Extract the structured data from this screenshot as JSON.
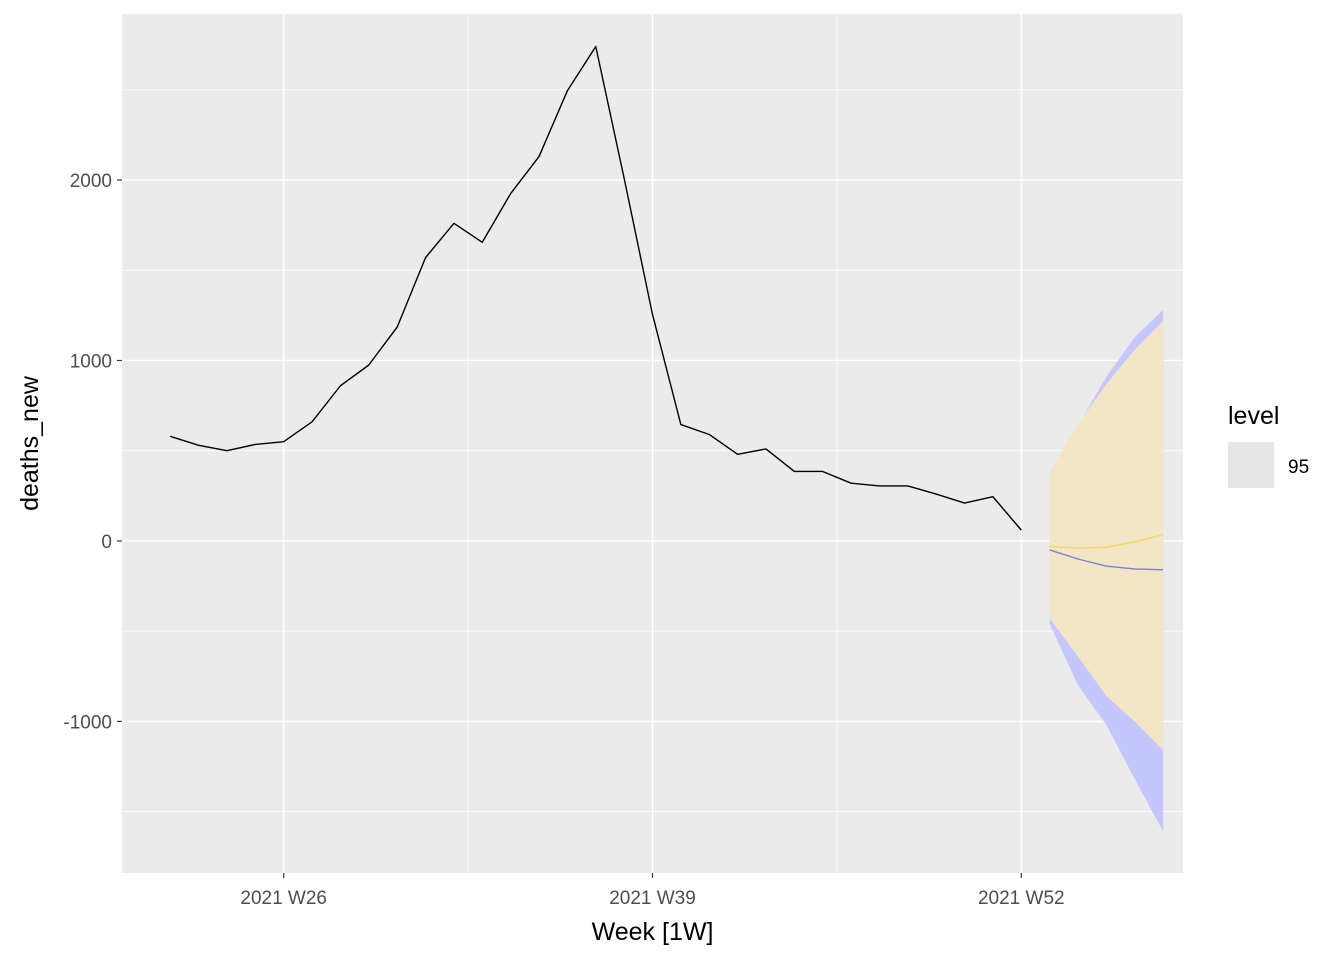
{
  "chart_data": {
    "type": "line",
    "xlabel": "Week [1W]",
    "ylabel": "deaths_new",
    "x_ticks": [
      "2021 W26",
      "2021 W39",
      "2021 W52"
    ],
    "x_tick_values": [
      26,
      39,
      52
    ],
    "y_ticks": [
      "-1000",
      "0",
      "1000",
      "2000"
    ],
    "y_tick_values": [
      -1000,
      0,
      1000,
      2000
    ],
    "xlim": [
      20.3,
      57.7
    ],
    "ylim": [
      -1840,
      2920
    ],
    "grid": true,
    "legend": {
      "title": "level",
      "position": "right",
      "items": [
        {
          "label": "95",
          "color": "#e5e5e5"
        }
      ]
    },
    "series": [
      {
        "color": "#000000",
        "x": [
          22,
          23,
          24,
          25,
          26,
          27,
          28,
          29,
          30,
          31,
          32,
          33,
          34,
          35,
          36,
          37,
          38,
          39,
          40,
          41,
          42,
          43,
          44,
          45,
          46,
          47,
          48,
          49,
          50,
          51,
          52
        ],
        "y": [
          580,
          530,
          500,
          535,
          550,
          660,
          860,
          975,
          1185,
          1570,
          1760,
          1655,
          1925,
          2130,
          2495,
          2740,
          2010,
          1255,
          645,
          590,
          480,
          510,
          385,
          385,
          320,
          305,
          305,
          260,
          210,
          245,
          60
        ]
      },
      {
        "color": "#7f7fd9",
        "x": [
          53,
          54,
          55,
          56,
          57
        ],
        "y": [
          -50,
          -100,
          -140,
          -155,
          -160
        ],
        "interval_color": "#c6c6ff",
        "lower": [
          -460,
          -800,
          -1020,
          -1320,
          -1610
        ],
        "upper": [
          380,
          640,
          910,
          1130,
          1280
        ]
      },
      {
        "color": "#f5d75c",
        "x": [
          53,
          54,
          55,
          56,
          57
        ],
        "y": [
          -30,
          -40,
          -35,
          -5,
          35
        ],
        "interval_color": "#f2e6c6",
        "lower": [
          -430,
          -640,
          -860,
          -1000,
          -1160
        ],
        "upper": [
          380,
          650,
          870,
          1060,
          1220
        ]
      }
    ]
  }
}
